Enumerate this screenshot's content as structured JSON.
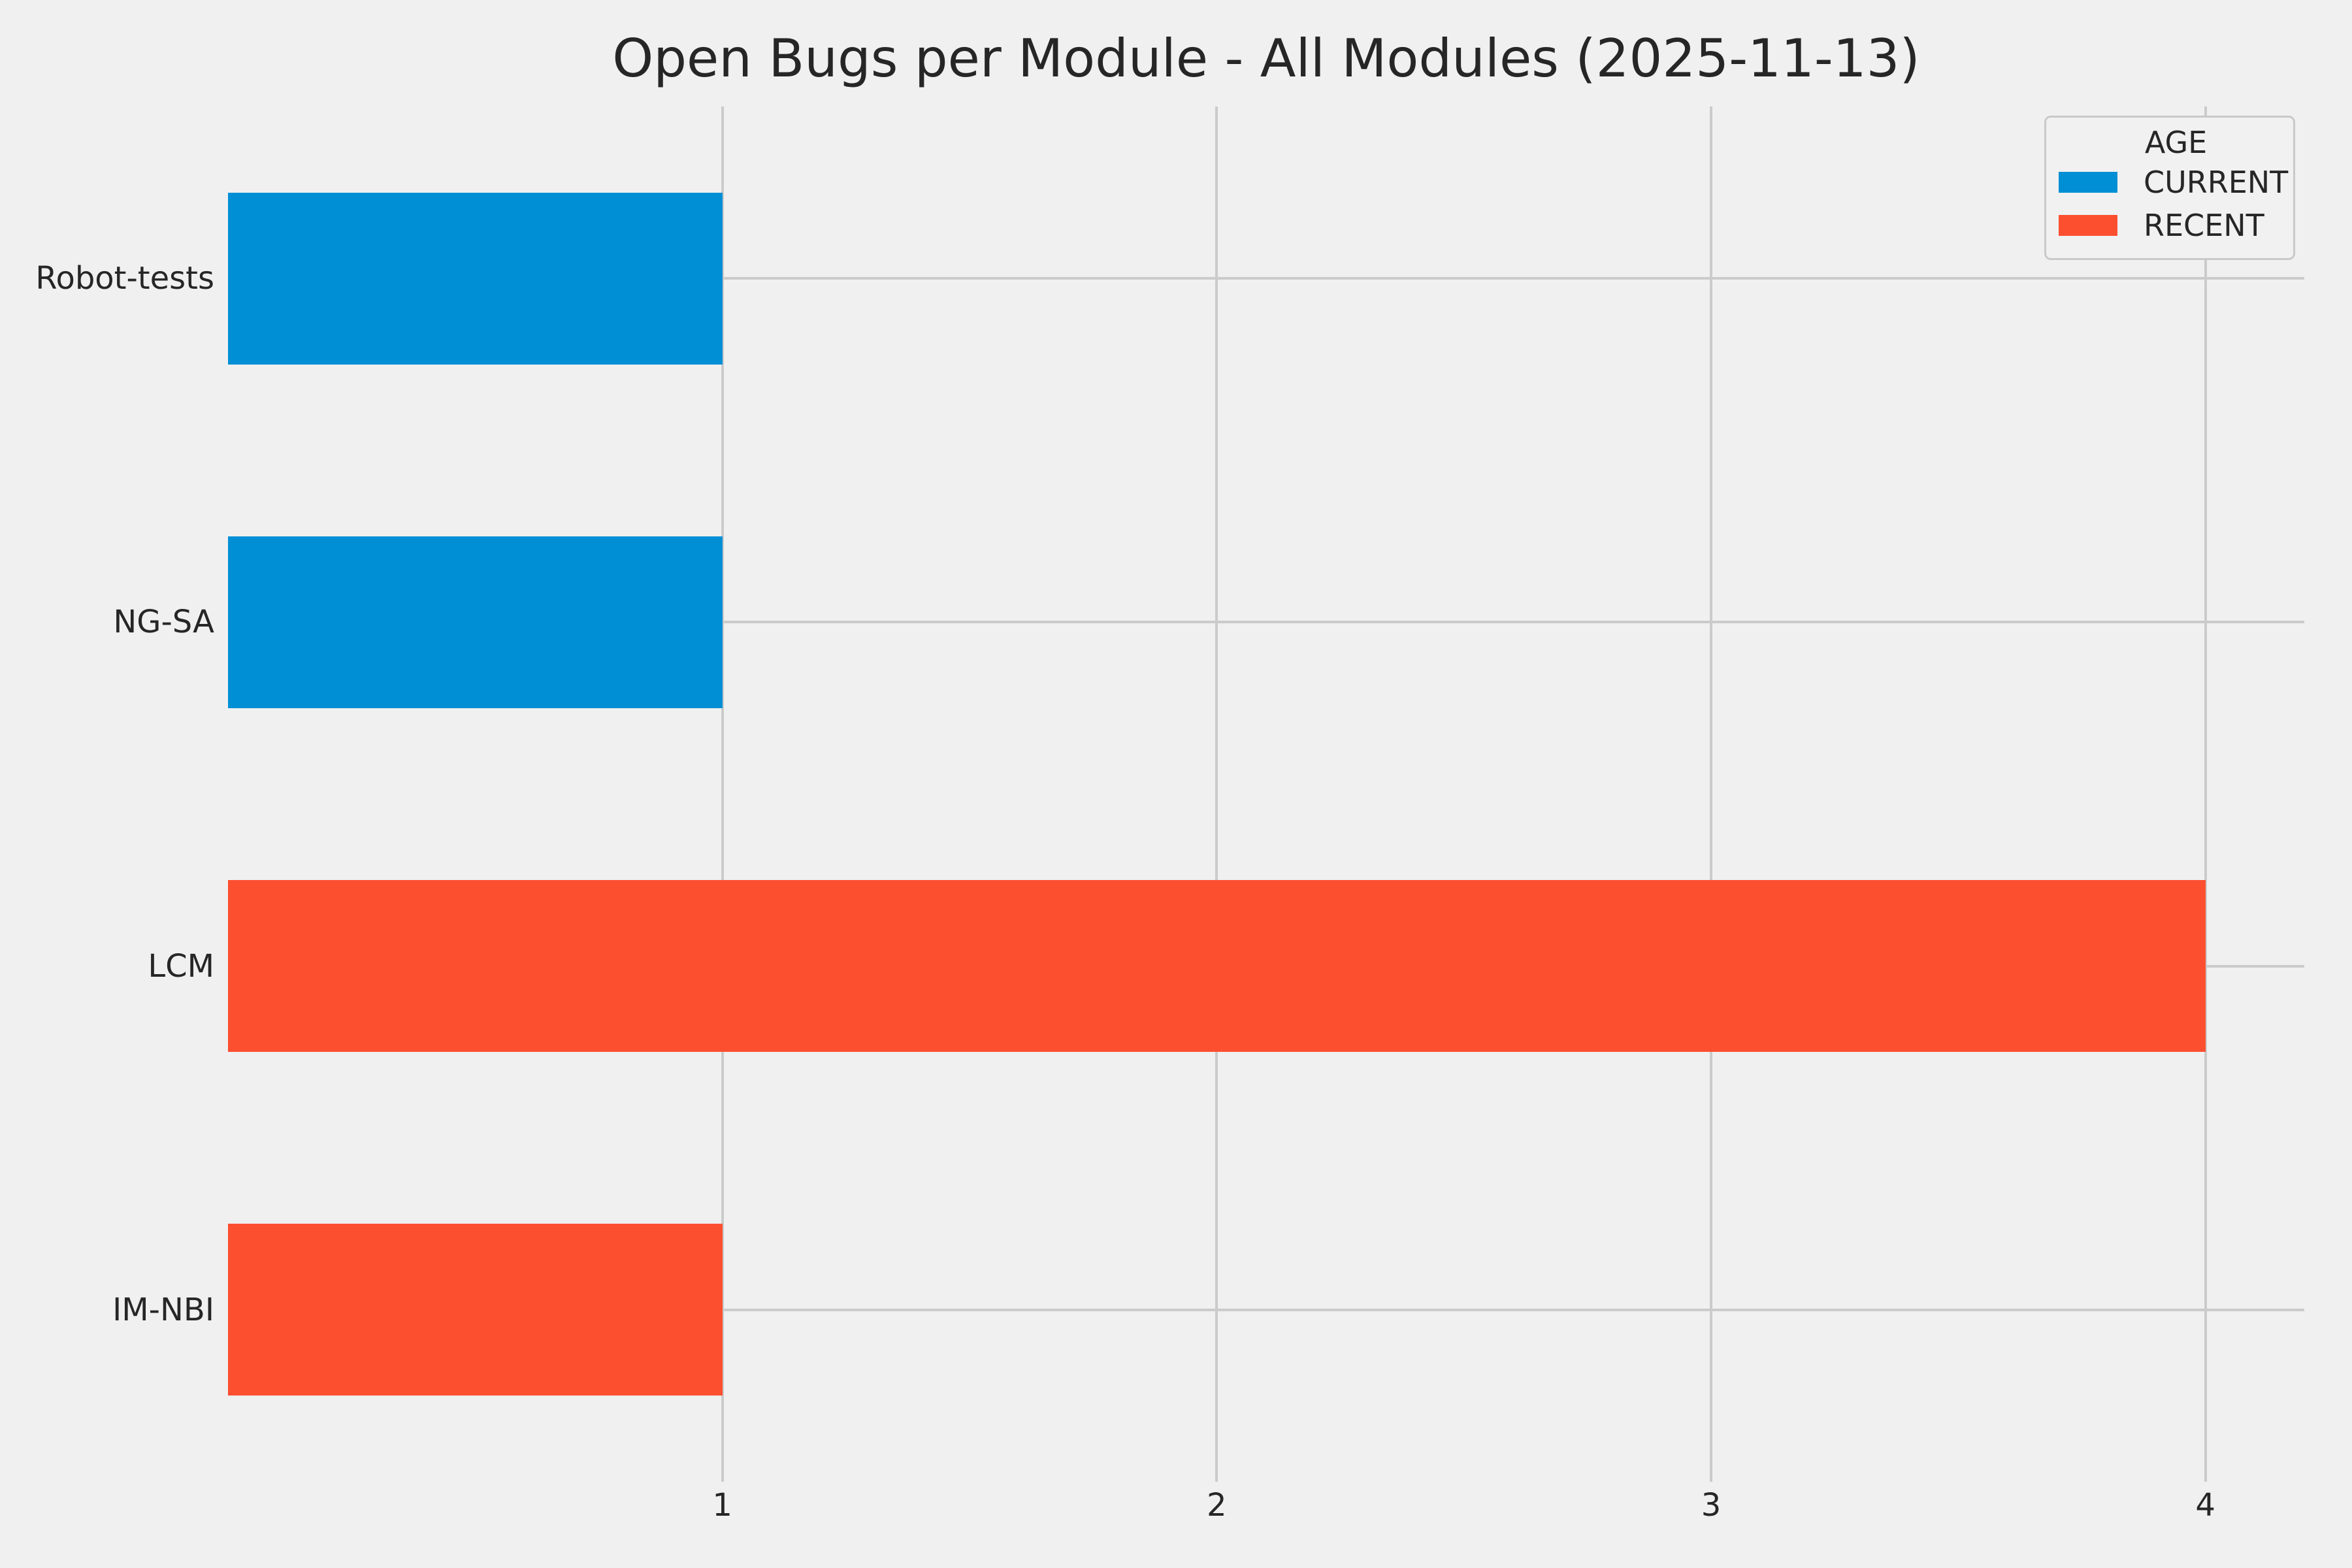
{
  "figure": {
    "background_color": "#f0f0f0",
    "grid_color": "#cbcbcb",
    "text_color": "#262626",
    "legend_face_color": "#f1f1f1",
    "legend_edge_color": "#c9c9c9"
  },
  "chart_data": {
    "type": "bar",
    "orientation": "horizontal",
    "title": "Open Bugs per Module - All Modules (2025-11-13)",
    "categories": [
      "Robot-tests",
      "NG-SA",
      "LCM",
      "IM-NBI"
    ],
    "series": [
      {
        "name": "CURRENT",
        "color": "#008fd5",
        "values": [
          1,
          1,
          0,
          0
        ]
      },
      {
        "name": "RECENT",
        "color": "#fc4f30",
        "values": [
          0,
          0,
          4,
          1
        ]
      }
    ],
    "xlabel": "",
    "ylabel": "",
    "xlim": [
      0,
      4.2
    ],
    "xticks": [
      1,
      2,
      3,
      4
    ],
    "grid": true,
    "bar_thickness_fraction": 0.5,
    "legend": {
      "title": "AGE",
      "position": "upper right",
      "entries": [
        "CURRENT",
        "RECENT"
      ]
    }
  }
}
